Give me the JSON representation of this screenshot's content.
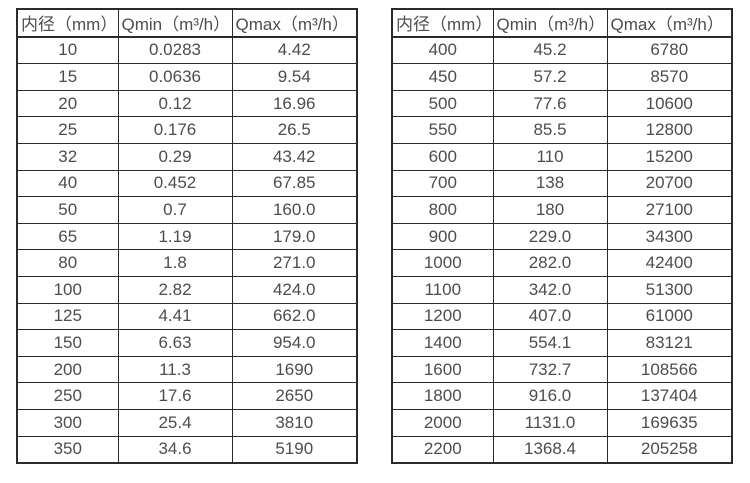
{
  "colors": {
    "border": "#2b2b2b",
    "text": "#4d4d4d",
    "background": "#ffffff"
  },
  "table_left": {
    "name": "flow-table-small-diameters",
    "headers": [
      "内径（mm）",
      "Qmin（m³/h）",
      "Qmax（m³/h）"
    ],
    "rows": [
      [
        "10",
        "0.0283",
        "4.42"
      ],
      [
        "15",
        "0.0636",
        "9.54"
      ],
      [
        "20",
        "0.12",
        "16.96"
      ],
      [
        "25",
        "0.176",
        "26.5"
      ],
      [
        "32",
        "0.29",
        "43.42"
      ],
      [
        "40",
        "0.452",
        "67.85"
      ],
      [
        "50",
        "0.7",
        "160.0"
      ],
      [
        "65",
        "1.19",
        "179.0"
      ],
      [
        "80",
        "1.8",
        "271.0"
      ],
      [
        "100",
        "2.82",
        "424.0"
      ],
      [
        "125",
        "4.41",
        "662.0"
      ],
      [
        "150",
        "6.63",
        "954.0"
      ],
      [
        "200",
        "11.3",
        "1690"
      ],
      [
        "250",
        "17.6",
        "2650"
      ],
      [
        "300",
        "25.4",
        "3810"
      ],
      [
        "350",
        "34.6",
        "5190"
      ]
    ]
  },
  "table_right": {
    "name": "flow-table-large-diameters",
    "headers": [
      "内径（mm）",
      "Qmin（m³/h）",
      "Qmax（m³/h）"
    ],
    "rows": [
      [
        "400",
        "45.2",
        "6780"
      ],
      [
        "450",
        "57.2",
        "8570"
      ],
      [
        "500",
        "77.6",
        "10600"
      ],
      [
        "550",
        "85.5",
        "12800"
      ],
      [
        "600",
        "110",
        "15200"
      ],
      [
        "700",
        "138",
        "20700"
      ],
      [
        "800",
        "180",
        "27100"
      ],
      [
        "900",
        "229.0",
        "34300"
      ],
      [
        "1000",
        "282.0",
        "42400"
      ],
      [
        "1100",
        "342.0",
        "51300"
      ],
      [
        "1200",
        "407.0",
        "61000"
      ],
      [
        "1400",
        "554.1",
        "83121"
      ],
      [
        "1600",
        "732.7",
        "108566"
      ],
      [
        "1800",
        "916.0",
        "137404"
      ],
      [
        "2000",
        "1131.0",
        "169635"
      ],
      [
        "2200",
        "1368.4",
        "205258"
      ]
    ]
  }
}
